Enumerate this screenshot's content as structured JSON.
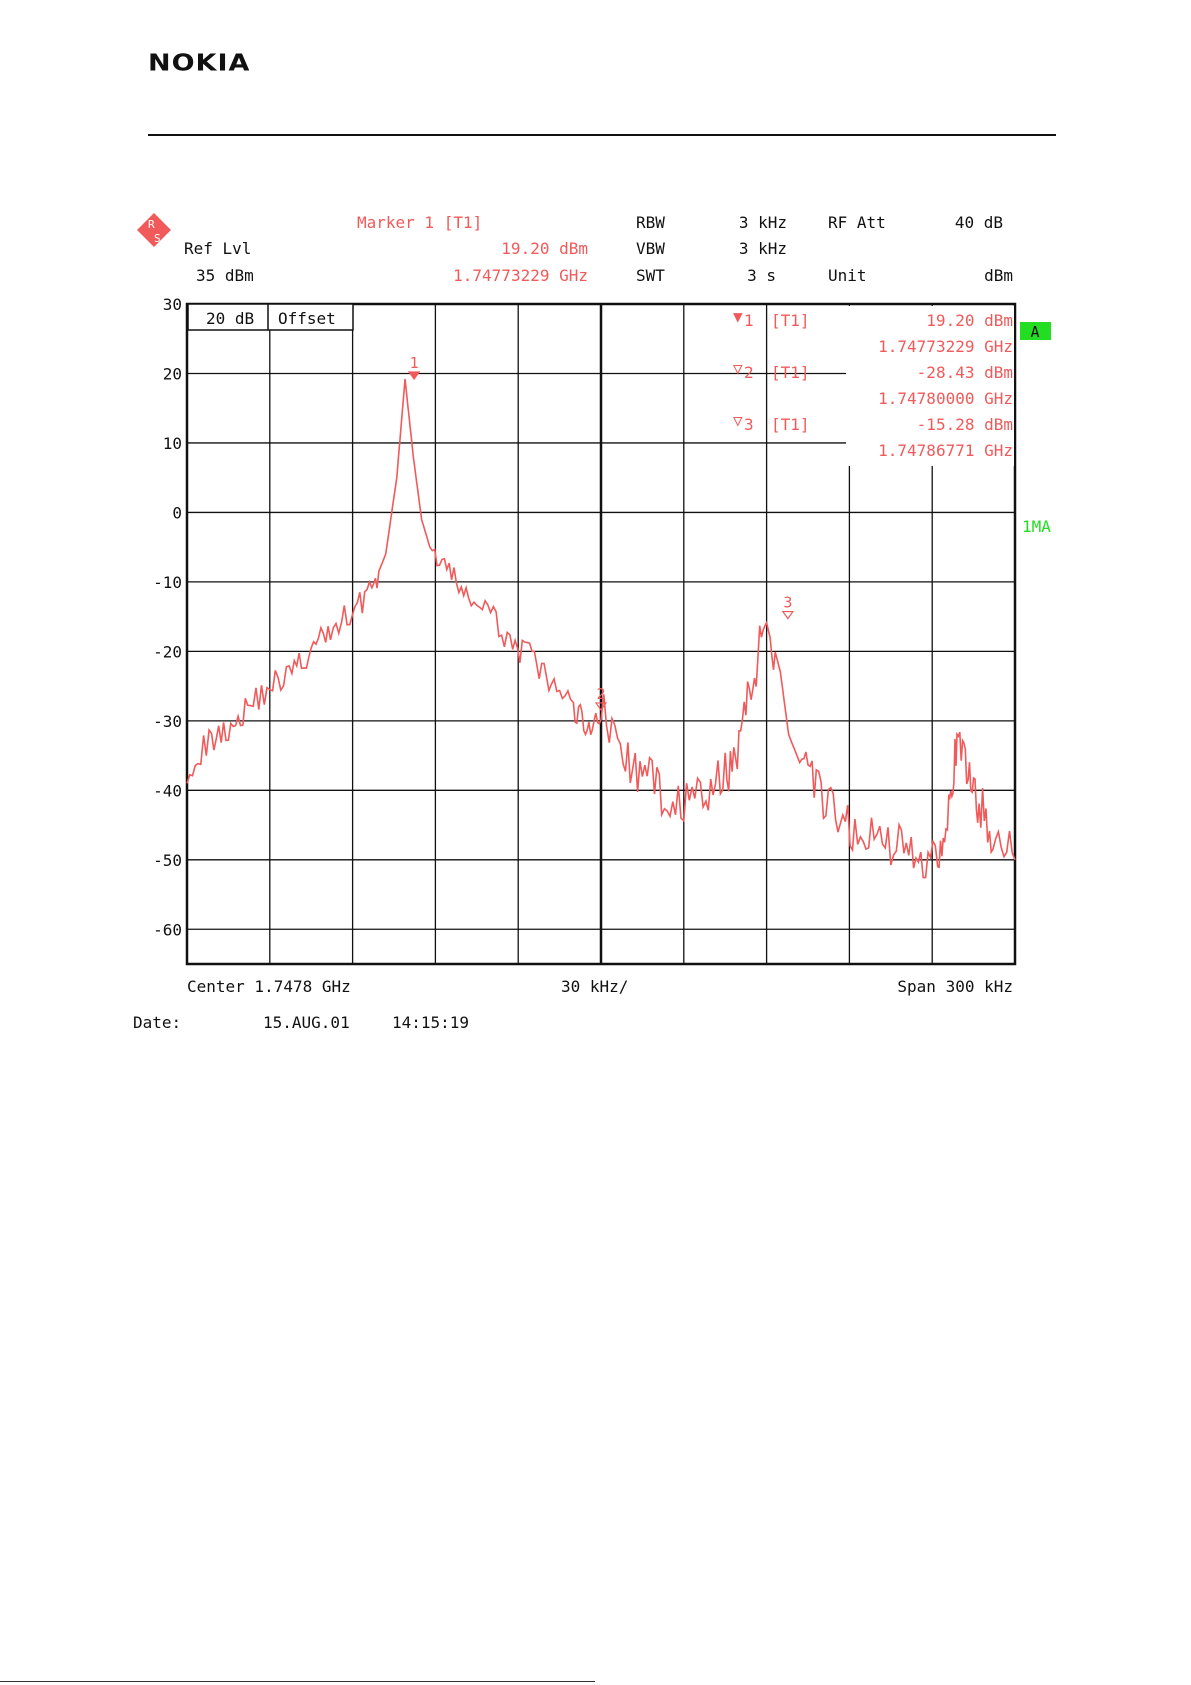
{
  "logo_text": "NOKIA",
  "colors": {
    "trace": "#f05a5a",
    "grid": "#111111",
    "status": "#22dd22"
  },
  "header": {
    "marker_title": "Marker 1 [T1]",
    "ref_lvl_label": "Ref Lvl",
    "ref_lvl_value": "35 dBm",
    "marker_level": "19.20 dBm",
    "marker_freq": "1.74773229 GHz",
    "rbw_label": "RBW",
    "rbw_value": "3 kHz",
    "vbw_label": "VBW",
    "vbw_value": "3 kHz",
    "swt_label": "SWT",
    "swt_value": "3 s",
    "rfatt_label": "RF Att",
    "rfatt_value": "40 dB",
    "unit_label": "Unit",
    "unit_value": "dBm",
    "offset_value": "20 dB",
    "offset_label": "Offset"
  },
  "status": {
    "trace_a": "A",
    "mode": "1MA"
  },
  "markers": [
    {
      "id": "1",
      "symbol": "▼",
      "trace": "[T1]",
      "level": "19.20 dBm",
      "freq": "1.74773229 GHz"
    },
    {
      "id": "2",
      "symbol": "▽",
      "trace": "[T1]",
      "level": "-28.43 dBm",
      "freq": "1.74780000 GHz"
    },
    {
      "id": "3",
      "symbol": "▽",
      "trace": "[T1]",
      "level": "-15.28 dBm",
      "freq": "1.74786771 GHz"
    }
  ],
  "footer": {
    "center": "Center 1.7478 GHz",
    "per_div": "30 kHz/",
    "span": "Span 300 kHz",
    "date_label": "Date:",
    "date_value": "15.AUG.01",
    "time_value": "14:15:19"
  },
  "chart_data": {
    "type": "line",
    "xlabel": "",
    "ylabel": "",
    "xlim": [
      1.74765,
      1.74795
    ],
    "ylim": [
      -65,
      30
    ],
    "yticks": [
      "30",
      "20",
      "10",
      "0",
      "-10",
      "-20",
      "-30",
      "-40",
      "-50",
      "-60"
    ],
    "grid": true,
    "x_divisions": 10,
    "series": [
      {
        "x": [
          1.74765,
          1.747658,
          1.747665,
          1.747672,
          1.74768,
          1.747688,
          1.747695,
          1.747702,
          1.74771,
          1.747717,
          1.747722,
          1.747726,
          1.747729,
          1.747732,
          1.747735,
          1.747738,
          1.747745,
          1.747752,
          1.74776,
          1.747768,
          1.747775,
          1.747782,
          1.74779,
          1.747795,
          1.7478,
          1.747808,
          1.747815,
          1.747822,
          1.74783,
          1.747838,
          1.747845,
          1.74785,
          1.747855,
          1.74786,
          1.747865,
          1.747868,
          1.747872,
          1.747878,
          1.747885,
          1.747892,
          1.7479,
          1.747908,
          1.747915,
          1.747922,
          1.747926,
          1.747929,
          1.747933,
          1.747937,
          1.747942,
          1.74795
        ],
        "y": [
          -37,
          -33,
          -31,
          -28,
          -25,
          -23,
          -20,
          -17,
          -14,
          -11,
          -6,
          5,
          19.2,
          8,
          -1,
          -5,
          -9,
          -12,
          -15,
          -19,
          -21,
          -25,
          -28,
          -31,
          -28.4,
          -35,
          -38,
          -40,
          -42,
          -41,
          -38,
          -33,
          -24,
          -15.3,
          -23,
          -32,
          -36,
          -40,
          -44,
          -46,
          -47,
          -48,
          -50,
          -49,
          -42,
          -34,
          -37,
          -42,
          -46,
          -50
        ]
      }
    ]
  }
}
